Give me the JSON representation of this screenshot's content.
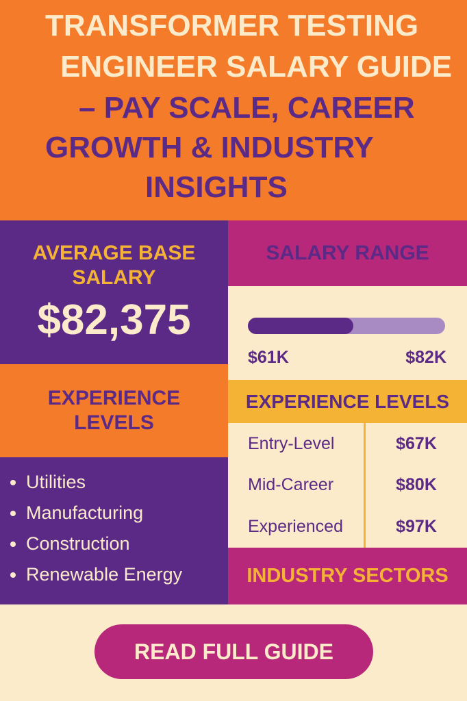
{
  "header": {
    "title_lines": [
      "TRANSFORMER TESTING",
      "ENGINEER SALARY GUIDE",
      "– PAY SCALE, CAREER",
      "GROWTH & INDUSTRY",
      "INSIGHTS"
    ]
  },
  "average_salary": {
    "label": "AVERAGE BASE SALARY",
    "value": "$82,375"
  },
  "salary_range": {
    "title": "SALARY RANGE",
    "low": "$61K",
    "high": "$82K"
  },
  "experience_left": {
    "title": "EXPERIENCE LEVELS"
  },
  "experience_table": {
    "title": "EXPERIENCE LEVELS",
    "rows": [
      [
        "Entry-Level",
        "$67K"
      ],
      [
        "Mid-Career",
        "$80K"
      ],
      [
        "Experienced",
        "$97K"
      ]
    ]
  },
  "industries": {
    "title": "INDUSTRY SECTORS",
    "items": [
      "Utilities",
      "Manufacturing",
      "Construction",
      "Renewable Energy"
    ]
  },
  "button": {
    "label": "READ FULL GUIDE"
  }
}
